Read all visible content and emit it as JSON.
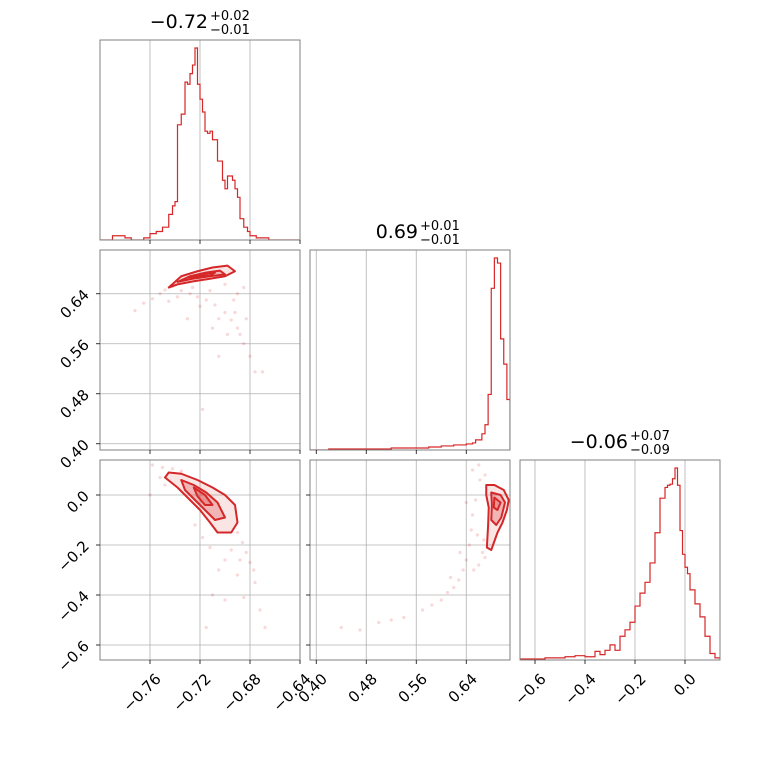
{
  "chart_data": {
    "type": "corner",
    "color": "#d62728",
    "grid": true,
    "parameters": [
      {
        "title": {
          "median": "−0.72",
          "plus": "+0.02",
          "minus": "−0.01"
        },
        "range": [
          -0.8,
          -0.64
        ],
        "ticks": [
          -0.76,
          -0.72,
          -0.68,
          -0.64
        ],
        "tick_labels": [
          "−0.76",
          "−0.72",
          "−0.68",
          "−0.64"
        ],
        "hist_bins": [
          -0.8,
          -0.795,
          -0.79,
          -0.785,
          -0.78,
          -0.775,
          -0.77,
          -0.765,
          -0.76,
          -0.755,
          -0.75,
          -0.745,
          -0.742,
          -0.74,
          -0.738,
          -0.735,
          -0.732,
          -0.73,
          -0.728,
          -0.726,
          -0.724,
          -0.722,
          -0.72,
          -0.718,
          -0.716,
          -0.714,
          -0.712,
          -0.71,
          -0.708,
          -0.706,
          -0.704,
          -0.702,
          -0.7,
          -0.698,
          -0.696,
          -0.694,
          -0.692,
          -0.69,
          -0.688,
          -0.685,
          -0.682,
          -0.68,
          -0.675,
          -0.67,
          -0.665,
          -0.66,
          -0.65,
          -0.64
        ],
        "hist_counts": [
          0,
          0,
          2,
          2,
          1,
          0,
          0,
          1,
          3,
          4,
          6,
          12,
          16,
          18,
          54,
          59,
          74,
          73,
          78,
          82,
          90,
          73,
          66,
          60,
          51,
          50,
          51,
          47,
          47,
          37,
          37,
          28,
          24,
          30,
          30,
          28,
          24,
          20,
          10,
          6,
          4,
          2,
          1,
          1,
          0,
          0,
          0
        ]
      },
      {
        "title": {
          "median": "0.69",
          "plus": "+0.01",
          "minus": "−0.01"
        },
        "range": [
          0.39,
          0.71
        ],
        "ticks": [
          0.4,
          0.48,
          0.56,
          0.64
        ],
        "tick_labels": [
          "0.40",
          "0.48",
          "0.56",
          "0.64"
        ],
        "hist_bins": [
          0.39,
          0.42,
          0.45,
          0.48,
          0.5,
          0.52,
          0.54,
          0.56,
          0.58,
          0.59,
          0.6,
          0.61,
          0.62,
          0.63,
          0.64,
          0.65,
          0.655,
          0.66,
          0.665,
          0.67,
          0.675,
          0.68,
          0.685,
          0.69,
          0.695,
          0.7,
          0.705,
          0.71
        ],
        "hist_counts": [
          0,
          1,
          1,
          1,
          1,
          2,
          2,
          2,
          3,
          3,
          4,
          4,
          5,
          5,
          6,
          7,
          10,
          10,
          16,
          25,
          55,
          160,
          190,
          185,
          110,
          85,
          50
        ]
      },
      {
        "title": {
          "median": "−0.06",
          "plus": "+0.07",
          "minus": "−0.09"
        },
        "range": [
          -0.66,
          0.14
        ],
        "ticks": [
          -0.6,
          -0.4,
          -0.2,
          0.0
        ],
        "tick_labels": [
          "−0.6",
          "−0.4",
          "−0.2",
          "0.0"
        ],
        "hist_bins": [
          -0.66,
          -0.6,
          -0.56,
          -0.52,
          -0.48,
          -0.44,
          -0.4,
          -0.36,
          -0.34,
          -0.32,
          -0.3,
          -0.28,
          -0.26,
          -0.24,
          -0.22,
          -0.2,
          -0.18,
          -0.16,
          -0.14,
          -0.12,
          -0.1,
          -0.08,
          -0.07,
          -0.06,
          -0.05,
          -0.04,
          -0.03,
          -0.02,
          -0.01,
          0.0,
          0.01,
          0.02,
          0.04,
          0.06,
          0.08,
          0.1,
          0.12,
          0.14
        ],
        "hist_counts": [
          1,
          1,
          2,
          2,
          3,
          4,
          3,
          8,
          5,
          9,
          14,
          9,
          22,
          28,
          35,
          50,
          62,
          72,
          90,
          118,
          150,
          160,
          162,
          163,
          168,
          178,
          162,
          120,
          98,
          86,
          80,
          65,
          52,
          40,
          22,
          6,
          2
        ]
      }
    ],
    "pairs": [
      {
        "row": 1,
        "col": 0,
        "contours": [
          [
            [
              -0.745,
              0.65
            ],
            [
              -0.735,
              0.668
            ],
            [
              -0.722,
              0.676
            ],
            [
              -0.71,
              0.682
            ],
            [
              -0.698,
              0.685
            ],
            [
              -0.692,
              0.676
            ],
            [
              -0.7,
              0.668
            ],
            [
              -0.712,
              0.664
            ],
            [
              -0.725,
              0.66
            ],
            [
              -0.738,
              0.655
            ]
          ],
          [
            [
              -0.738,
              0.659
            ],
            [
              -0.728,
              0.668
            ],
            [
              -0.715,
              0.674
            ],
            [
              -0.704,
              0.677
            ],
            [
              -0.7,
              0.671
            ],
            [
              -0.712,
              0.668
            ],
            [
              -0.726,
              0.664
            ]
          ],
          [
            [
              -0.73,
              0.666
            ],
            [
              -0.718,
              0.671
            ],
            [
              -0.708,
              0.674
            ],
            [
              -0.712,
              0.669
            ],
            [
              -0.724,
              0.667
            ]
          ]
        ],
        "points": [
          [
            -0.772,
            0.613
          ],
          [
            -0.765,
            0.625
          ],
          [
            -0.758,
            0.632
          ],
          [
            -0.752,
            0.64
          ],
          [
            -0.748,
            0.646
          ],
          [
            -0.742,
            0.652
          ],
          [
            -0.735,
            0.645
          ],
          [
            -0.728,
            0.64
          ],
          [
            -0.722,
            0.635
          ],
          [
            -0.715,
            0.63
          ],
          [
            -0.708,
            0.622
          ],
          [
            -0.7,
            0.61
          ],
          [
            -0.695,
            0.598
          ],
          [
            -0.69,
            0.585
          ],
          [
            -0.688,
            0.575
          ],
          [
            -0.685,
            0.56
          ],
          [
            -0.68,
            0.54
          ],
          [
            -0.676,
            0.515
          ],
          [
            -0.71,
            0.585
          ],
          [
            -0.705,
            0.54
          ],
          [
            -0.718,
            0.455
          ],
          [
            -0.73,
            0.6
          ],
          [
            -0.69,
            0.64
          ],
          [
            -0.7,
            0.655
          ],
          [
            -0.685,
            0.65
          ],
          [
            -0.693,
            0.63
          ],
          [
            -0.712,
            0.645
          ],
          [
            -0.726,
            0.65
          ],
          [
            -0.72,
            0.62
          ],
          [
            -0.698,
            0.575
          ],
          [
            -0.683,
            0.6
          ],
          [
            -0.67,
            0.515
          ],
          [
            -0.745,
            0.628
          ],
          [
            -0.738,
            0.635
          ],
          [
            -0.705,
            0.6
          ],
          [
            -0.692,
            0.61
          ]
        ]
      },
      {
        "row": 2,
        "col": 0,
        "contours": [
          [
            [
              -0.745,
              0.09
            ],
            [
              -0.735,
              0.085
            ],
            [
              -0.722,
              0.06
            ],
            [
              -0.71,
              0.03
            ],
            [
              -0.7,
              0.0
            ],
            [
              -0.692,
              -0.04
            ],
            [
              -0.69,
              -0.11
            ],
            [
              -0.695,
              -0.15
            ],
            [
              -0.706,
              -0.15
            ],
            [
              -0.712,
              -0.11
            ],
            [
              -0.72,
              -0.06
            ],
            [
              -0.728,
              -0.02
            ],
            [
              -0.738,
              0.03
            ],
            [
              -0.748,
              0.07
            ]
          ],
          [
            [
              -0.735,
              0.06
            ],
            [
              -0.725,
              0.04
            ],
            [
              -0.715,
              0.01
            ],
            [
              -0.706,
              -0.03
            ],
            [
              -0.7,
              -0.09
            ],
            [
              -0.708,
              -0.1
            ],
            [
              -0.716,
              -0.06
            ],
            [
              -0.724,
              -0.02
            ],
            [
              -0.732,
              0.02
            ]
          ],
          [
            [
              -0.725,
              0.03
            ],
            [
              -0.716,
              0.0
            ],
            [
              -0.71,
              -0.04
            ],
            [
              -0.716,
              -0.04
            ],
            [
              -0.722,
              -0.005
            ]
          ]
        ],
        "points": [
          [
            -0.758,
            0.12
          ],
          [
            -0.75,
            0.11
          ],
          [
            -0.742,
            0.105
          ],
          [
            -0.735,
            0.095
          ],
          [
            -0.69,
            -0.15
          ],
          [
            -0.686,
            -0.19
          ],
          [
            -0.683,
            -0.23
          ],
          [
            -0.68,
            -0.27
          ],
          [
            -0.677,
            -0.3
          ],
          [
            -0.69,
            -0.32
          ],
          [
            -0.7,
            -0.26
          ],
          [
            -0.705,
            -0.3
          ],
          [
            -0.712,
            -0.21
          ],
          [
            -0.718,
            -0.17
          ],
          [
            -0.724,
            -0.12
          ],
          [
            -0.71,
            -0.4
          ],
          [
            -0.7,
            -0.42
          ],
          [
            -0.685,
            -0.41
          ],
          [
            -0.672,
            -0.46
          ],
          [
            -0.668,
            -0.53
          ],
          [
            -0.715,
            -0.53
          ],
          [
            -0.76,
            0.0
          ],
          [
            -0.752,
            0.07
          ],
          [
            -0.748,
            0.04
          ],
          [
            -0.695,
            -0.22
          ],
          [
            -0.688,
            -0.26
          ],
          [
            -0.676,
            -0.35
          ]
        ]
      },
      {
        "row": 2,
        "col": 1,
        "contours": [
          [
            [
              0.672,
              0.04
            ],
            [
              0.685,
              0.04
            ],
            [
              0.7,
              0.02
            ],
            [
              0.708,
              -0.02
            ],
            [
              0.705,
              -0.06
            ],
            [
              0.698,
              -0.11
            ],
            [
              0.69,
              -0.15
            ],
            [
              0.68,
              -0.22
            ],
            [
              0.673,
              -0.21
            ],
            [
              0.675,
              -0.12
            ],
            [
              0.676,
              -0.05
            ],
            [
              0.672,
              0.0
            ]
          ],
          [
            [
              0.68,
              0.01
            ],
            [
              0.695,
              0.0
            ],
            [
              0.702,
              -0.03
            ],
            [
              0.696,
              -0.09
            ],
            [
              0.688,
              -0.12
            ],
            [
              0.68,
              -0.1
            ],
            [
              0.681,
              -0.04
            ]
          ],
          [
            [
              0.685,
              -0.01
            ],
            [
              0.695,
              -0.03
            ],
            [
              0.69,
              -0.06
            ],
            [
              0.684,
              -0.05
            ]
          ]
        ],
        "points": [
          [
            0.65,
            0.1
          ],
          [
            0.66,
            0.12
          ],
          [
            0.67,
            0.08
          ],
          [
            0.662,
            0.06
          ],
          [
            0.655,
            -0.02
          ],
          [
            0.65,
            -0.08
          ],
          [
            0.648,
            -0.14
          ],
          [
            0.645,
            -0.2
          ],
          [
            0.64,
            -0.26
          ],
          [
            0.635,
            -0.3
          ],
          [
            0.628,
            -0.34
          ],
          [
            0.62,
            -0.37
          ],
          [
            0.61,
            -0.39
          ],
          [
            0.6,
            -0.42
          ],
          [
            0.585,
            -0.44
          ],
          [
            0.57,
            -0.46
          ],
          [
            0.54,
            -0.49
          ],
          [
            0.52,
            -0.5
          ],
          [
            0.5,
            -0.51
          ],
          [
            0.47,
            -0.54
          ],
          [
            0.44,
            -0.53
          ],
          [
            0.66,
            -0.28
          ],
          [
            0.666,
            -0.23
          ],
          [
            0.64,
            -0.03
          ],
          [
            0.658,
            -0.16
          ],
          [
            0.67,
            -0.25
          ],
          [
            0.63,
            -0.23
          ],
          [
            0.652,
            -0.3
          ],
          [
            0.615,
            -0.33
          ],
          [
            0.668,
            -0.18
          ]
        ]
      }
    ]
  }
}
